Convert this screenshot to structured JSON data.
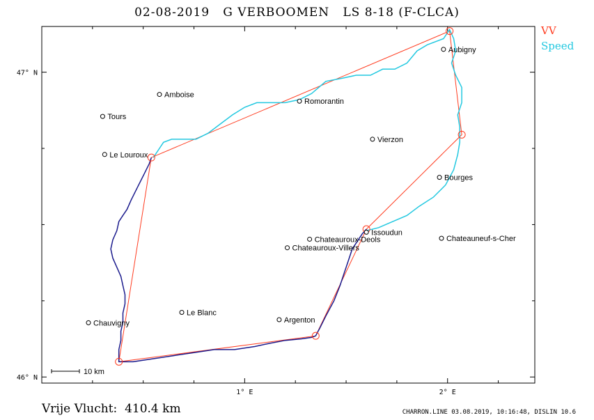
{
  "header": {
    "date": "02-08-2019",
    "pilot": "G VERBOOMEN",
    "glider": "LS 8-18 (F-CLCA)"
  },
  "legend": {
    "vv_label": "VV",
    "vv_color": "#ff3b1f",
    "speed_label": "Speed",
    "speed_color": "#22c8e0"
  },
  "axes": {
    "y_ticks": [
      {
        "label": "47° N",
        "lat": 47.0
      },
      {
        "label": "46° N",
        "lat": 46.0
      }
    ],
    "x_ticks": [
      {
        "label": "1° E",
        "lon": 1.0
      },
      {
        "label": "2° E",
        "lon": 2.0
      }
    ],
    "lon_range": [
      0.0,
      2.43
    ],
    "lat_range": [
      45.98,
      47.15
    ]
  },
  "scale_bar": {
    "label": "10 km"
  },
  "places": [
    {
      "name": "Amboise",
      "lon": 0.58,
      "lat": 46.927
    },
    {
      "name": "Tours",
      "lon": 0.3,
      "lat": 46.855
    },
    {
      "name": "Le Louroux",
      "lon": 0.31,
      "lat": 46.73
    },
    {
      "name": "Romorantin",
      "lon": 1.27,
      "lat": 46.905
    },
    {
      "name": "Aubigny",
      "lon": 1.98,
      "lat": 47.075
    },
    {
      "name": "Vierzon",
      "lon": 1.63,
      "lat": 46.78
    },
    {
      "name": "Bourges",
      "lon": 1.96,
      "lat": 46.655
    },
    {
      "name": "Chateauneuf-s-Cher",
      "lon": 1.97,
      "lat": 46.455
    },
    {
      "name": "Issoudun",
      "lon": 1.6,
      "lat": 46.475
    },
    {
      "name": "Chateauroux-Deols",
      "lon": 1.32,
      "lat": 46.452
    },
    {
      "name": "Chateauroux-Villers",
      "lon": 1.21,
      "lat": 46.424
    },
    {
      "name": "Le Blanc",
      "lon": 0.69,
      "lat": 46.212
    },
    {
      "name": "Argenton",
      "lon": 1.17,
      "lat": 46.188
    },
    {
      "name": "Chauvigny",
      "lon": 0.23,
      "lat": 46.178
    }
  ],
  "task_turnpoints": [
    {
      "lon": 1.6,
      "lat": 46.485
    },
    {
      "lon": 2.07,
      "lat": 46.795
    },
    {
      "lon": 2.01,
      "lat": 47.135
    },
    {
      "lon": 0.54,
      "lat": 46.72
    },
    {
      "lon": 0.38,
      "lat": 46.05
    },
    {
      "lon": 1.35,
      "lat": 46.135
    },
    {
      "lon": 1.6,
      "lat": 46.485
    }
  ],
  "track_speed": [
    [
      1.6,
      46.48
    ],
    [
      1.66,
      46.49
    ],
    [
      1.73,
      46.51
    ],
    [
      1.8,
      46.53
    ],
    [
      1.86,
      46.56
    ],
    [
      1.93,
      46.59
    ],
    [
      1.99,
      46.63
    ],
    [
      2.03,
      46.68
    ],
    [
      2.05,
      46.73
    ],
    [
      2.06,
      46.77
    ],
    [
      2.06,
      46.82
    ],
    [
      2.05,
      46.86
    ],
    [
      2.07,
      46.9
    ],
    [
      2.07,
      46.95
    ],
    [
      2.04,
      46.99
    ],
    [
      2.02,
      47.03
    ],
    [
      2.04,
      47.07
    ],
    [
      2.03,
      47.11
    ],
    [
      2.01,
      47.14
    ],
    [
      1.98,
      47.11
    ],
    [
      1.9,
      47.09
    ],
    [
      1.85,
      47.07
    ],
    [
      1.8,
      47.03
    ],
    [
      1.74,
      47.01
    ],
    [
      1.68,
      47.01
    ],
    [
      1.62,
      46.99
    ],
    [
      1.55,
      46.99
    ],
    [
      1.48,
      46.98
    ],
    [
      1.4,
      46.97
    ],
    [
      1.33,
      46.93
    ],
    [
      1.27,
      46.91
    ],
    [
      1.2,
      46.9
    ],
    [
      1.12,
      46.9
    ],
    [
      1.06,
      46.9
    ],
    [
      1.0,
      46.885
    ],
    [
      0.94,
      46.86
    ],
    [
      0.88,
      46.83
    ],
    [
      0.82,
      46.8
    ],
    [
      0.76,
      46.78
    ],
    [
      0.7,
      46.78
    ],
    [
      0.64,
      46.78
    ],
    [
      0.6,
      46.77
    ],
    [
      0.58,
      46.75
    ],
    [
      0.55,
      46.72
    ]
  ],
  "track_vv": [
    [
      0.54,
      46.72
    ],
    [
      0.53,
      46.7
    ],
    [
      0.5,
      46.66
    ],
    [
      0.47,
      46.62
    ],
    [
      0.44,
      46.58
    ],
    [
      0.42,
      46.55
    ],
    [
      0.4,
      46.53
    ],
    [
      0.38,
      46.51
    ],
    [
      0.37,
      46.48
    ],
    [
      0.35,
      46.45
    ],
    [
      0.34,
      46.42
    ],
    [
      0.35,
      46.39
    ],
    [
      0.37,
      46.36
    ],
    [
      0.39,
      46.33
    ],
    [
      0.4,
      46.3
    ],
    [
      0.41,
      46.27
    ],
    [
      0.41,
      46.24
    ],
    [
      0.4,
      46.21
    ],
    [
      0.4,
      46.18
    ],
    [
      0.39,
      46.15
    ],
    [
      0.39,
      46.12
    ],
    [
      0.38,
      46.09
    ],
    [
      0.38,
      46.06
    ],
    [
      0.38,
      46.05
    ],
    [
      0.45,
      46.05
    ],
    [
      0.55,
      46.06
    ],
    [
      0.65,
      46.07
    ],
    [
      0.75,
      46.08
    ],
    [
      0.85,
      46.09
    ],
    [
      0.95,
      46.09
    ],
    [
      1.05,
      46.1
    ],
    [
      1.12,
      46.11
    ],
    [
      1.2,
      46.12
    ],
    [
      1.28,
      46.125
    ],
    [
      1.33,
      46.13
    ],
    [
      1.35,
      46.135
    ],
    [
      1.37,
      46.16
    ],
    [
      1.4,
      46.2
    ],
    [
      1.44,
      46.25
    ],
    [
      1.47,
      46.3
    ],
    [
      1.49,
      46.34
    ],
    [
      1.51,
      46.38
    ],
    [
      1.53,
      46.42
    ],
    [
      1.56,
      46.45
    ],
    [
      1.58,
      46.47
    ],
    [
      1.6,
      46.485
    ]
  ],
  "footer": {
    "distance": "Vrije Vlucht:  410.4 km",
    "program": "CHARRON.LINE 03.08.2019, 10:16:48, DISLIN 10.6"
  }
}
